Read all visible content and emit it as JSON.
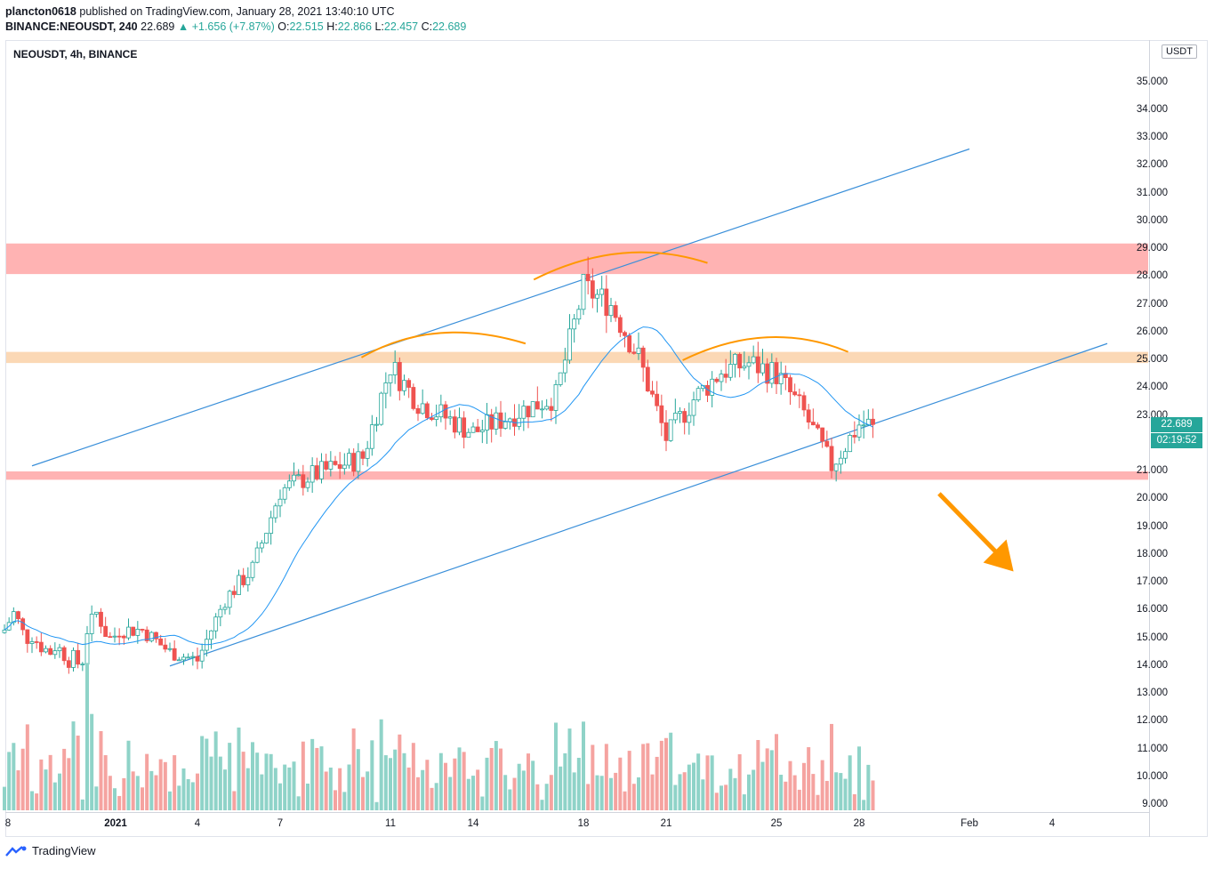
{
  "header": {
    "user": "plancton0618",
    "published": "published on TradingView.com, January 28, 2021 13:40:10 UTC",
    "symbol": "BINANCE:NEOUSDT, 240",
    "last": "22.689",
    "change": "▲ +1.656 (+7.87%)",
    "o_label": "O:",
    "o_value": "22.515",
    "h_label": "H:",
    "h_value": "22.866",
    "l_label": "L:",
    "l_value": "22.457",
    "c_label": "C:",
    "c_value": "22.689"
  },
  "pane_title": "NEOUSDT, 4h, BINANCE",
  "unit": "USDT",
  "price_badge": "22.689",
  "timer_badge": "02:19:52",
  "footer": {
    "brand": "TradingView"
  },
  "colors": {
    "up": "#26a69a",
    "down": "#ef5350",
    "vol_up": "#8fd3c8",
    "vol_down": "#f5a3a0",
    "ma": "#2196f3",
    "channel": "#3a8fd9",
    "resistance": "#ffb3b3",
    "support_zone": "#fbd8b5",
    "arc": "#ff9800"
  },
  "chart_data": {
    "type": "candlestick",
    "y_tick_labels": [
      "35.000",
      "34.000",
      "33.000",
      "32.000",
      "31.000",
      "30.000",
      "29.000",
      "28.000",
      "27.000",
      "26.000",
      "25.000",
      "24.000",
      "23.000",
      "21.000",
      "20.000",
      "19.000",
      "18.000",
      "17.000",
      "16.000",
      "15.000",
      "14.000",
      "13.000",
      "12.000",
      "11.000",
      "10.000",
      "9.000"
    ],
    "x_tick_labels": [
      "8",
      "2021",
      "4",
      "7",
      "11",
      "14",
      "18",
      "21",
      "25",
      "28",
      "Feb",
      "4"
    ],
    "ylim": [
      9.0,
      36.0
    ],
    "ohlc_keypoints": [
      {
        "t": "Jan 2",
        "price": 15.3
      },
      {
        "t": "Jan 3",
        "price": 14.5
      },
      {
        "t": "Jan 4",
        "price": 14.2
      },
      {
        "t": "Jan 5",
        "price": 16.4
      },
      {
        "t": "Jan 6",
        "price": 17.5
      },
      {
        "t": "Jan 7",
        "price": 20.3
      },
      {
        "t": "Jan 8",
        "price": 20.8
      },
      {
        "t": "Jan 10",
        "price": 21.5
      },
      {
        "t": "Jan 11",
        "price": 24.8
      },
      {
        "t": "Jan 12",
        "price": 23.5
      },
      {
        "t": "Jan 14",
        "price": 22.4
      },
      {
        "t": "Jan 16",
        "price": 23.3
      },
      {
        "t": "Jan 17",
        "price": 23.7
      },
      {
        "t": "Jan 18",
        "price": 27.6
      },
      {
        "t": "Jan 19",
        "price": 27.0
      },
      {
        "t": "Jan 20",
        "price": 25.1
      },
      {
        "t": "Jan 21",
        "price": 22.2
      },
      {
        "t": "Jan 22",
        "price": 23.6
      },
      {
        "t": "Jan 23",
        "price": 24.6
      },
      {
        "t": "Jan 24",
        "price": 24.9
      },
      {
        "t": "Jan 25",
        "price": 24.5
      },
      {
        "t": "Jan 26",
        "price": 23.1
      },
      {
        "t": "Jan 27",
        "price": 21.2
      },
      {
        "t": "Jan 28",
        "price": 22.689
      }
    ],
    "zones": [
      {
        "name": "upper resistance",
        "low": 28.1,
        "high": 29.2
      },
      {
        "name": "middle zone",
        "low": 24.9,
        "high": 25.3
      },
      {
        "name": "lower support",
        "low": 20.7,
        "high": 21.0
      }
    ],
    "channel": {
      "upper_from": [
        "Dec 29",
        21.2
      ],
      "upper_to": [
        "Feb 1",
        32.6
      ],
      "lower_from": [
        "Jan 3",
        14.0
      ],
      "lower_to": [
        "Feb 6",
        25.6
      ]
    },
    "projection": {
      "from": 20.2,
      "to": 17.4,
      "direction": "down"
    }
  }
}
